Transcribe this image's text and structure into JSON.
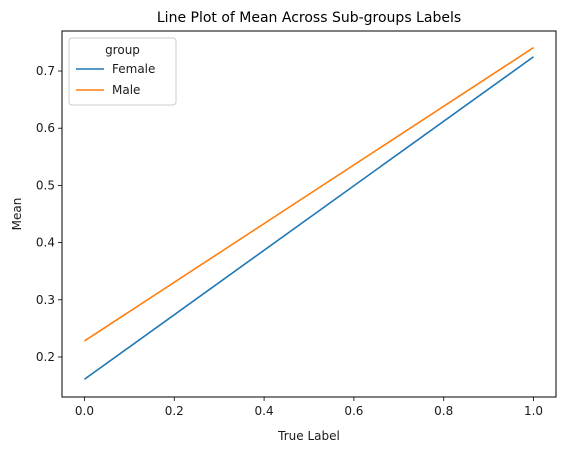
{
  "chart_data": {
    "type": "line",
    "title": "Line Plot of Mean Across Sub-groups Labels",
    "xlabel": "True Label",
    "ylabel": "Mean",
    "xlim": [
      -0.05,
      1.05
    ],
    "ylim": [
      0.13,
      0.77
    ],
    "xticks": [
      0.0,
      0.2,
      0.4,
      0.6,
      0.8,
      1.0
    ],
    "xtick_labels": [
      "0.0",
      "0.2",
      "0.4",
      "0.6",
      "0.8",
      "1.0"
    ],
    "yticks": [
      0.2,
      0.3,
      0.4,
      0.5,
      0.6,
      0.7
    ],
    "ytick_labels": [
      "0.2",
      "0.3",
      "0.4",
      "0.5",
      "0.6",
      "0.7"
    ],
    "grid": false,
    "legend": {
      "title": "group",
      "location": "upper-left"
    },
    "series": [
      {
        "name": "Female",
        "color": "#1f77b4",
        "x": [
          0.0,
          1.0
        ],
        "y": [
          0.161,
          0.725
        ]
      },
      {
        "name": "Male",
        "color": "#ff7f0e",
        "x": [
          0.0,
          1.0
        ],
        "y": [
          0.228,
          0.741
        ]
      }
    ]
  }
}
